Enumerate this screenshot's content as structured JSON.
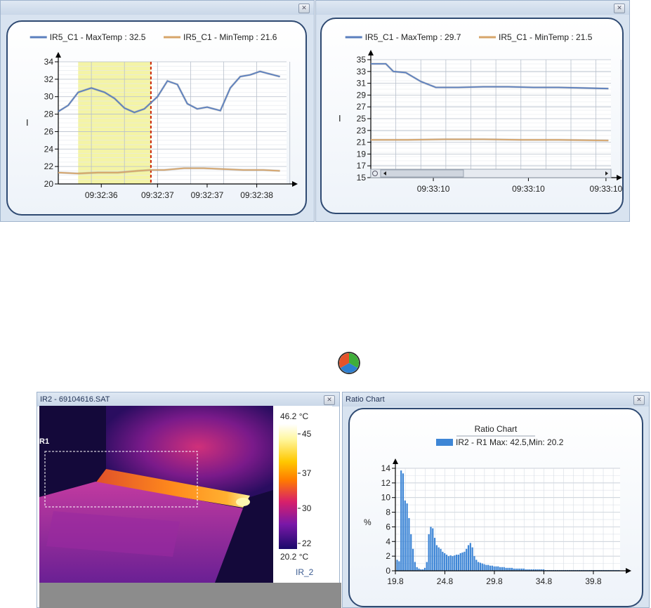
{
  "chart_data": [
    {
      "type": "line",
      "title": "",
      "xlabel": "",
      "ylabel": "I",
      "ylim": [
        20,
        34
      ],
      "yticks": [
        20,
        22,
        24,
        26,
        28,
        30,
        32,
        34
      ],
      "xtick_labels": [
        "09:32:36",
        "09:32:37",
        "09:32:37",
        "09:32:38"
      ],
      "grid": true,
      "legend": "top",
      "highlight_range": [
        0.6,
        2.8
      ],
      "marker_at": 2.8,
      "series": [
        {
          "name": "IR5_C1 - MaxTemp : 32.5",
          "color": "#5b7fbe",
          "x": [
            0,
            0.3,
            0.6,
            1.0,
            1.4,
            1.7,
            2.0,
            2.3,
            2.6,
            2.8,
            3.0,
            3.3,
            3.6,
            3.9,
            4.2,
            4.5,
            4.9,
            5.2,
            5.5,
            5.8,
            6.1,
            6.4,
            6.7
          ],
          "y": [
            28.3,
            29.0,
            30.5,
            31.0,
            30.5,
            29.8,
            28.7,
            28.2,
            28.6,
            29.3,
            30.0,
            31.8,
            31.4,
            29.2,
            28.6,
            28.8,
            28.4,
            31.0,
            32.3,
            32.5,
            32.9,
            32.6,
            32.3
          ]
        },
        {
          "name": "IR5_C1 - MinTemp : 21.6",
          "color": "#d7a56a",
          "x": [
            0,
            0.6,
            1.2,
            1.8,
            2.4,
            2.8,
            3.2,
            3.8,
            4.4,
            5.0,
            5.6,
            6.2,
            6.7
          ],
          "y": [
            21.3,
            21.2,
            21.3,
            21.3,
            21.5,
            21.6,
            21.6,
            21.8,
            21.8,
            21.7,
            21.6,
            21.6,
            21.5
          ]
        }
      ]
    },
    {
      "type": "line",
      "title": "",
      "xlabel": "",
      "ylabel": "I",
      "ylim": [
        15,
        35
      ],
      "yticks": [
        15,
        17,
        19,
        21,
        23,
        25,
        27,
        29,
        31,
        33,
        35
      ],
      "xtick_labels": [
        "09:33:10",
        "09:33:10",
        "09:33:10"
      ],
      "grid": true,
      "legend": "top",
      "series": [
        {
          "name": "IR5_C1 - MaxTemp : 29.7",
          "color": "#5b7fbe",
          "x": [
            0,
            0.6,
            0.9,
            1.4,
            2.0,
            2.6,
            3.5,
            4.5,
            5.5,
            6.5,
            7.5,
            8.5,
            9.5
          ],
          "y": [
            34.3,
            34.3,
            33.0,
            32.8,
            31.3,
            30.3,
            30.3,
            30.4,
            30.4,
            30.3,
            30.3,
            30.2,
            30.1
          ]
        },
        {
          "name": "IR5_C1 - MinTemp : 21.5",
          "color": "#d7a56a",
          "x": [
            0,
            1.5,
            3.0,
            4.5,
            6.0,
            7.5,
            9.5
          ],
          "y": [
            21.4,
            21.4,
            21.5,
            21.5,
            21.4,
            21.4,
            21.3
          ]
        }
      ]
    },
    {
      "type": "bar",
      "title": "Ratio Chart",
      "xlabel": "",
      "ylabel": "%",
      "ylim": [
        0,
        14
      ],
      "yticks": [
        0,
        2,
        4,
        6,
        8,
        10,
        12,
        14
      ],
      "xlim": [
        19.8,
        42.5
      ],
      "xticks": [
        19.8,
        24.8,
        29.8,
        34.8,
        39.8
      ],
      "grid": true,
      "legend": "top",
      "series": [
        {
          "name": "IR2 - R1 Max: 42.5,Min: 20.2",
          "color": "#3e86d6",
          "x": [
            20.0,
            20.2,
            20.4,
            20.6,
            20.8,
            21.0,
            21.2,
            21.4,
            21.6,
            21.8,
            22.0,
            22.2,
            22.4,
            22.6,
            22.8,
            23.0,
            23.2,
            23.4,
            23.6,
            23.8,
            24.0,
            24.2,
            24.4,
            24.6,
            24.8,
            25.0,
            25.2,
            25.4,
            25.6,
            25.8,
            26.0,
            26.2,
            26.4,
            26.6,
            26.8,
            27.0,
            27.2,
            27.4,
            27.6,
            27.8,
            28.0,
            28.2,
            28.4,
            28.6,
            28.8,
            29.0,
            29.2,
            29.4,
            29.6,
            29.8,
            30.0,
            30.2,
            30.4,
            30.6,
            30.8,
            31.0,
            31.2,
            31.4,
            31.6,
            31.8,
            32.0,
            32.2,
            32.4,
            32.6,
            32.8,
            33.0,
            33.2,
            33.4,
            33.6,
            33.8,
            34.0,
            34.2,
            34.4,
            34.6,
            34.8,
            35.0,
            35.2,
            35.4,
            35.6,
            35.8,
            36.0,
            36.2,
            36.4,
            36.6,
            36.8,
            37.0,
            37.2,
            37.4,
            37.6,
            37.8,
            38.0,
            38.2,
            38.4,
            38.6,
            38.8,
            39.0,
            39.2,
            39.4,
            39.6,
            39.8,
            40.0,
            40.2,
            40.4,
            40.6,
            40.8,
            41.0,
            41.2,
            41.4,
            41.6,
            41.8,
            42.0,
            42.2,
            42.4
          ],
          "values": [
            1.5,
            1.3,
            13.7,
            13.3,
            9.6,
            9.2,
            7.2,
            5.0,
            3.0,
            1.2,
            0.5,
            0.3,
            0.2,
            0.2,
            0.4,
            1.2,
            5.0,
            6.0,
            5.8,
            4.5,
            3.5,
            3.2,
            3.0,
            2.6,
            2.4,
            2.2,
            2.0,
            2.1,
            2.0,
            2.1,
            2.2,
            2.2,
            2.4,
            2.5,
            2.6,
            3.0,
            3.5,
            3.8,
            3.2,
            2.0,
            1.5,
            1.2,
            1.1,
            1.0,
            0.9,
            0.8,
            0.8,
            0.7,
            0.7,
            0.6,
            0.6,
            0.6,
            0.5,
            0.5,
            0.5,
            0.4,
            0.4,
            0.4,
            0.4,
            0.3,
            0.3,
            0.3,
            0.3,
            0.3,
            0.3,
            0.2,
            0.2,
            0.2,
            0.2,
            0.2,
            0.2,
            0.2,
            0.2,
            0.2,
            0.2,
            0.1,
            0.1,
            0.1,
            0.1,
            0.1,
            0.1,
            0.1,
            0.1,
            0.1,
            0.1,
            0.1,
            0.1,
            0.1,
            0.1,
            0.1,
            0.1,
            0.1,
            0.1,
            0.1,
            0.1,
            0.1,
            0.1,
            0.1,
            0.1,
            0.1,
            0.1,
            0.1,
            0.1,
            0.1,
            0.1,
            0.1,
            0.1,
            0.1,
            0.1,
            0.1,
            0.1,
            0.1,
            0.1
          ]
        }
      ]
    }
  ],
  "thermal_pane": {
    "title": "IR2 - 69104616.SAT",
    "region_label": "R1",
    "scale_max": "46.2 °C",
    "scale_min": "20.2 °C",
    "scale_ticks": [
      "45",
      "37",
      "30",
      "22"
    ],
    "camera_label": "IR_2"
  },
  "ratio_pane": {
    "title": "Ratio Chart"
  },
  "icons": {
    "close": "close-icon",
    "app": "color-wheel-icon"
  },
  "colors": {
    "max_series": "#5b7fbe",
    "min_series": "#d7a56a",
    "bars": "#3e86d6",
    "highlight": "#f4f4a6",
    "marker": "#cc2200"
  }
}
